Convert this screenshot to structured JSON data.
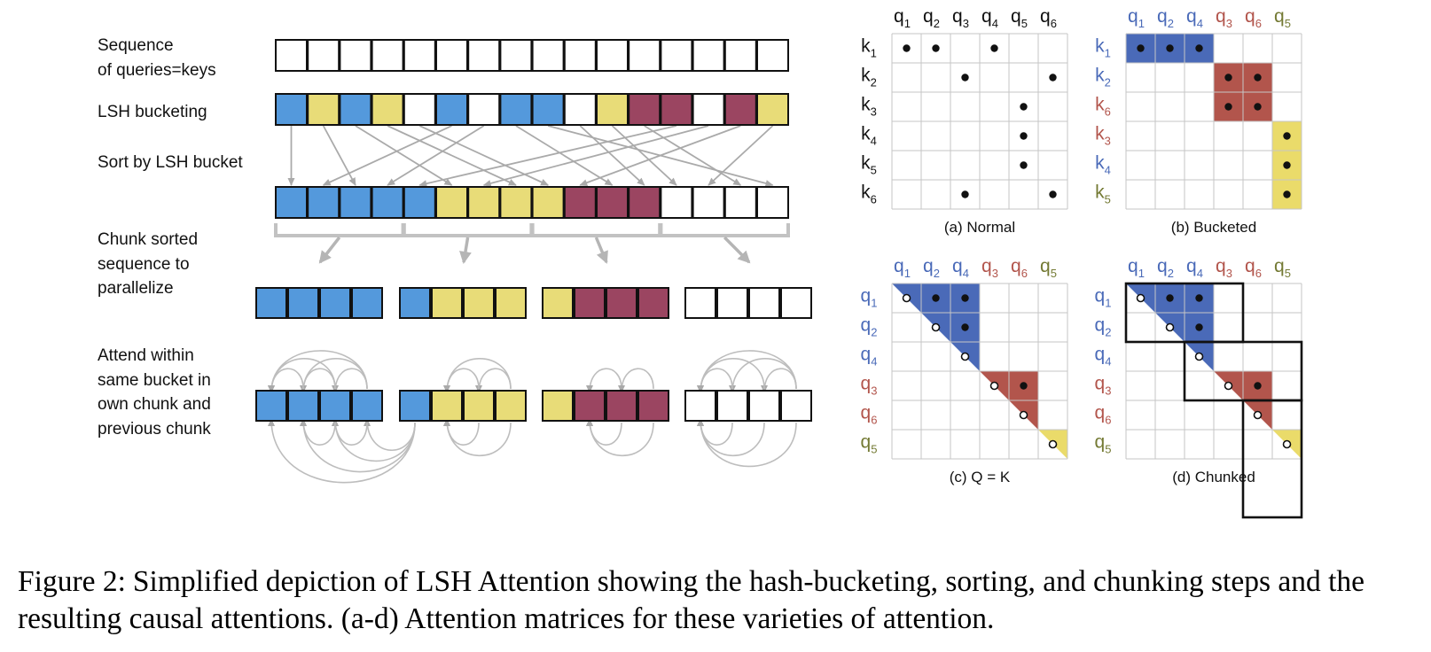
{
  "steps": {
    "sequence": "Sequence\nof queries=keys",
    "bucketing": "LSH bucketing",
    "sort": "Sort by LSH bucket",
    "chunk": "Chunk sorted\nsequence to\nparallelize",
    "attend": "Attend within\nsame bucket in\nown chunk and\nprevious chunk"
  },
  "colors": {
    "blue": "#5499dc",
    "yellow": "#e8dc78",
    "maroon": "#9b4561",
    "white": "#ffffff",
    "mat_blue": "#4a6ab8",
    "mat_red": "#b2554c",
    "mat_yellow": "#eadb6a",
    "grid": "#c6c6c6",
    "label_blue": "#4a6ab8",
    "label_red": "#b2554c",
    "label_olive": "#747a34",
    "arrow": "#aaaaaa"
  },
  "lsh_buckets": [
    "blue",
    "yellow",
    "blue",
    "yellow",
    "white",
    "blue",
    "white",
    "blue",
    "blue",
    "white",
    "yellow",
    "maroon",
    "maroon",
    "white",
    "maroon",
    "yellow"
  ],
  "sorted_buckets": [
    "blue",
    "blue",
    "blue",
    "blue",
    "blue",
    "yellow",
    "yellow",
    "yellow",
    "yellow",
    "maroon",
    "maroon",
    "maroon",
    "white",
    "white",
    "white",
    "white"
  ],
  "sort_map": [
    0,
    5,
    1,
    6,
    12,
    2,
    13,
    3,
    4,
    14,
    7,
    9,
    10,
    15,
    11,
    8
  ],
  "matrices": {
    "a": {
      "caption": "(a) Normal",
      "cols": [
        "1",
        "2",
        "3",
        "4",
        "5",
        "6"
      ],
      "rows": [
        "1",
        "2",
        "3",
        "4",
        "5",
        "6"
      ],
      "col_prefix": "q",
      "row_prefix": "k",
      "dots": [
        [
          0,
          0
        ],
        [
          0,
          1
        ],
        [
          0,
          3
        ],
        [
          1,
          2
        ],
        [
          1,
          5
        ],
        [
          2,
          4
        ],
        [
          3,
          4
        ],
        [
          4,
          4
        ],
        [
          5,
          2
        ],
        [
          5,
          5
        ]
      ]
    },
    "b": {
      "caption": "(b) Bucketed",
      "cols": [
        "1",
        "2",
        "4",
        "3",
        "6",
        "5"
      ],
      "rows": [
        "1",
        "2",
        "6",
        "3",
        "4",
        "5"
      ],
      "col_prefix": "q",
      "row_prefix": "k",
      "dots": [
        [
          0,
          0
        ],
        [
          0,
          1
        ],
        [
          0,
          2
        ],
        [
          1,
          3
        ],
        [
          1,
          4
        ],
        [
          2,
          3
        ],
        [
          2,
          4
        ],
        [
          3,
          5
        ],
        [
          4,
          5
        ],
        [
          5,
          5
        ]
      ]
    },
    "c": {
      "caption": "(c) Q = K",
      "cols": [
        "1",
        "2",
        "4",
        "3",
        "6",
        "5"
      ],
      "rows": [
        "1",
        "2",
        "4",
        "3",
        "6",
        "5"
      ],
      "col_prefix": "q",
      "row_prefix": "q",
      "dots": [
        [
          0,
          0,
          "o"
        ],
        [
          0,
          1,
          "f"
        ],
        [
          0,
          2,
          "f"
        ],
        [
          1,
          1,
          "o"
        ],
        [
          1,
          2,
          "f"
        ],
        [
          2,
          2,
          "o"
        ],
        [
          3,
          3,
          "o"
        ],
        [
          3,
          4,
          "f"
        ],
        [
          4,
          4,
          "o"
        ],
        [
          5,
          5,
          "o"
        ]
      ]
    },
    "d": {
      "caption": "(d) Chunked",
      "cols": [
        "1",
        "2",
        "4",
        "3",
        "6",
        "5"
      ],
      "rows": [
        "1",
        "2",
        "4",
        "3",
        "6",
        "5"
      ],
      "col_prefix": "q",
      "row_prefix": "q",
      "dots": [
        [
          0,
          0,
          "o"
        ],
        [
          0,
          1,
          "f"
        ],
        [
          0,
          2,
          "f"
        ],
        [
          1,
          1,
          "o"
        ],
        [
          1,
          2,
          "f"
        ],
        [
          2,
          2,
          "o"
        ],
        [
          3,
          3,
          "o"
        ],
        [
          3,
          4,
          "f"
        ],
        [
          4,
          4,
          "o"
        ],
        [
          5,
          5,
          "o"
        ]
      ]
    }
  },
  "caption": {
    "label": "Figure 2:",
    "text": "Simplified depiction of LSH Attention showing the hash-bucketing, sorting, and chunking steps and the resulting causal attentions. (a-d) Attention matrices for these varieties of attention."
  }
}
